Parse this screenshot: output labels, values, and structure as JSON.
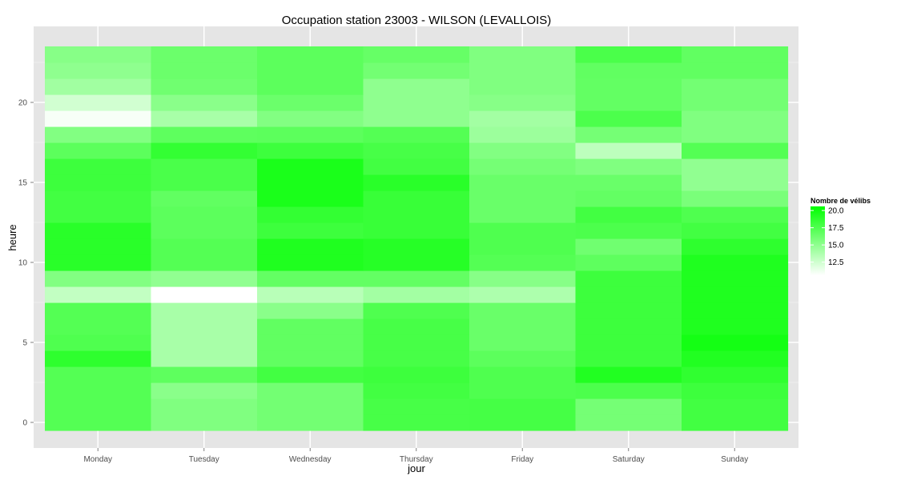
{
  "chart_data": {
    "type": "heatmap",
    "title": "Occupation station 23003 - WILSON (LEVALLOIS)",
    "xlabel": "jour",
    "ylabel": "heure",
    "x": [
      "Monday",
      "Tuesday",
      "Wednesday",
      "Thursday",
      "Friday",
      "Saturday",
      "Sunday"
    ],
    "y": [
      0,
      1,
      2,
      3,
      4,
      5,
      6,
      7,
      8,
      9,
      10,
      11,
      12,
      13,
      14,
      15,
      16,
      17,
      18,
      19,
      20,
      21,
      22,
      23
    ],
    "y_ticks": [
      0,
      5,
      10,
      15,
      20
    ],
    "ylim": [
      -0.5,
      23.5
    ],
    "grid": true,
    "color_scale": {
      "low": "#ffffff",
      "high": "#00ff00",
      "min": 10.6,
      "max": 20.6
    },
    "legend": {
      "title": "Nombre de vélibs",
      "breaks": [
        12.5,
        15.0,
        17.5,
        20.0
      ],
      "labels": [
        "12.5",
        "15.0",
        "17.5",
        "20.0"
      ],
      "position": "right"
    },
    "values": [
      [
        17.3,
        15.6,
        16.1,
        17.8,
        17.9,
        16.0,
        18.0
      ],
      [
        17.3,
        15.6,
        16.1,
        17.8,
        17.9,
        16.0,
        18.0
      ],
      [
        17.3,
        15.2,
        16.1,
        18.0,
        17.5,
        17.6,
        18.2
      ],
      [
        17.3,
        16.9,
        18.0,
        18.2,
        17.5,
        19.3,
        18.7
      ],
      [
        18.8,
        14.0,
        16.8,
        17.8,
        17.0,
        18.2,
        19.3
      ],
      [
        17.5,
        14.0,
        16.8,
        17.8,
        16.5,
        18.2,
        19.8
      ],
      [
        17.3,
        14.0,
        16.8,
        17.8,
        16.5,
        18.2,
        19.4
      ],
      [
        17.3,
        14.0,
        15.2,
        17.5,
        16.5,
        18.2,
        19.4
      ],
      [
        13.0,
        10.6,
        13.4,
        14.2,
        13.8,
        18.2,
        19.4
      ],
      [
        15.5,
        14.9,
        16.7,
        16.7,
        15.3,
        18.2,
        19.4
      ],
      [
        19.0,
        17.3,
        19.4,
        19.1,
        17.3,
        16.9,
        19.4
      ],
      [
        19.0,
        17.3,
        19.4,
        19.1,
        17.5,
        16.2,
        18.8
      ],
      [
        19.0,
        17.0,
        18.2,
        18.4,
        17.5,
        17.6,
        18.0
      ],
      [
        18.0,
        17.0,
        18.6,
        18.4,
        16.5,
        18.0,
        17.5
      ],
      [
        18.0,
        16.8,
        19.6,
        18.4,
        16.5,
        16.7,
        15.8
      ],
      [
        18.2,
        17.7,
        19.6,
        19.0,
        16.5,
        16.5,
        14.9
      ],
      [
        18.2,
        17.7,
        19.6,
        18.0,
        16.0,
        15.6,
        14.9
      ],
      [
        17.0,
        18.6,
        18.2,
        17.8,
        15.5,
        13.2,
        17.3
      ],
      [
        15.5,
        16.9,
        17.0,
        17.3,
        14.5,
        16.0,
        15.6
      ],
      [
        10.9,
        14.0,
        15.5,
        15.0,
        14.2,
        17.6,
        15.6
      ],
      [
        12.4,
        15.2,
        16.4,
        15.0,
        15.3,
        16.7,
        16.1
      ],
      [
        14.3,
        16.2,
        17.0,
        15.0,
        15.6,
        16.7,
        16.1
      ],
      [
        15.0,
        16.4,
        17.0,
        16.1,
        15.6,
        16.8,
        16.8
      ],
      [
        15.3,
        16.4,
        17.0,
        16.6,
        15.6,
        17.7,
        16.8
      ]
    ]
  }
}
